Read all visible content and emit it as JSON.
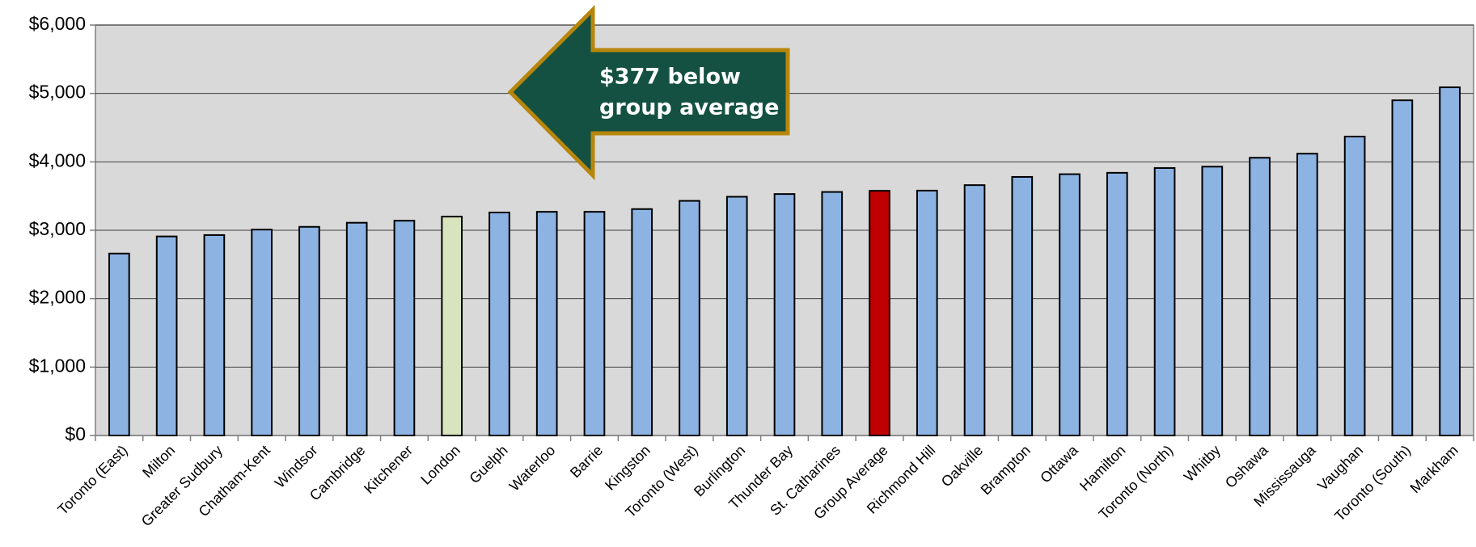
{
  "chart_data": {
    "type": "bar",
    "categories": [
      "Toronto (East)",
      "Milton",
      "Greater Sudbury",
      "Chatham-Kent",
      "Windsor",
      "Cambridge",
      "Kitchener",
      "London",
      "Guelph",
      "Waterloo",
      "Barrie",
      "Kingston",
      "Toronto (West)",
      "Burlington",
      "Thunder Bay",
      "St. Catharines",
      "Group Average",
      "Richmond Hill",
      "Oakville",
      "Brampton",
      "Ottawa",
      "Hamilton",
      "Toronto (North)",
      "Whitby",
      "Oshawa",
      "Mississauga",
      "Vaughan",
      "Toronto (South)",
      "Markham"
    ],
    "values": [
      2660,
      2910,
      2930,
      3010,
      3050,
      3110,
      3140,
      3200,
      3260,
      3270,
      3270,
      3310,
      3430,
      3490,
      3530,
      3560,
      3577,
      3580,
      3660,
      3780,
      3820,
      3840,
      3910,
      3930,
      4060,
      4120,
      4370,
      4900,
      5090
    ],
    "colors": [
      "#8db3e2",
      "#8db3e2",
      "#8db3e2",
      "#8db3e2",
      "#8db3e2",
      "#8db3e2",
      "#8db3e2",
      "#d7e4bd",
      "#8db3e2",
      "#8db3e2",
      "#8db3e2",
      "#8db3e2",
      "#8db3e2",
      "#8db3e2",
      "#8db3e2",
      "#8db3e2",
      "#c00000",
      "#8db3e2",
      "#8db3e2",
      "#8db3e2",
      "#8db3e2",
      "#8db3e2",
      "#8db3e2",
      "#8db3e2",
      "#8db3e2",
      "#8db3e2",
      "#8db3e2",
      "#8db3e2",
      "#8db3e2"
    ],
    "ylim": [
      0,
      6000
    ],
    "yticks": [
      {
        "value": 0,
        "label": "$0"
      },
      {
        "value": 1000,
        "label": "$1,000"
      },
      {
        "value": 2000,
        "label": "$2,000"
      },
      {
        "value": 3000,
        "label": "$3,000"
      },
      {
        "value": 4000,
        "label": "$4,000"
      },
      {
        "value": 5000,
        "label": "$5,000"
      },
      {
        "value": 6000,
        "label": "$6,000"
      }
    ],
    "grid": true,
    "annotation": [
      "$377 below",
      "group average"
    ]
  }
}
